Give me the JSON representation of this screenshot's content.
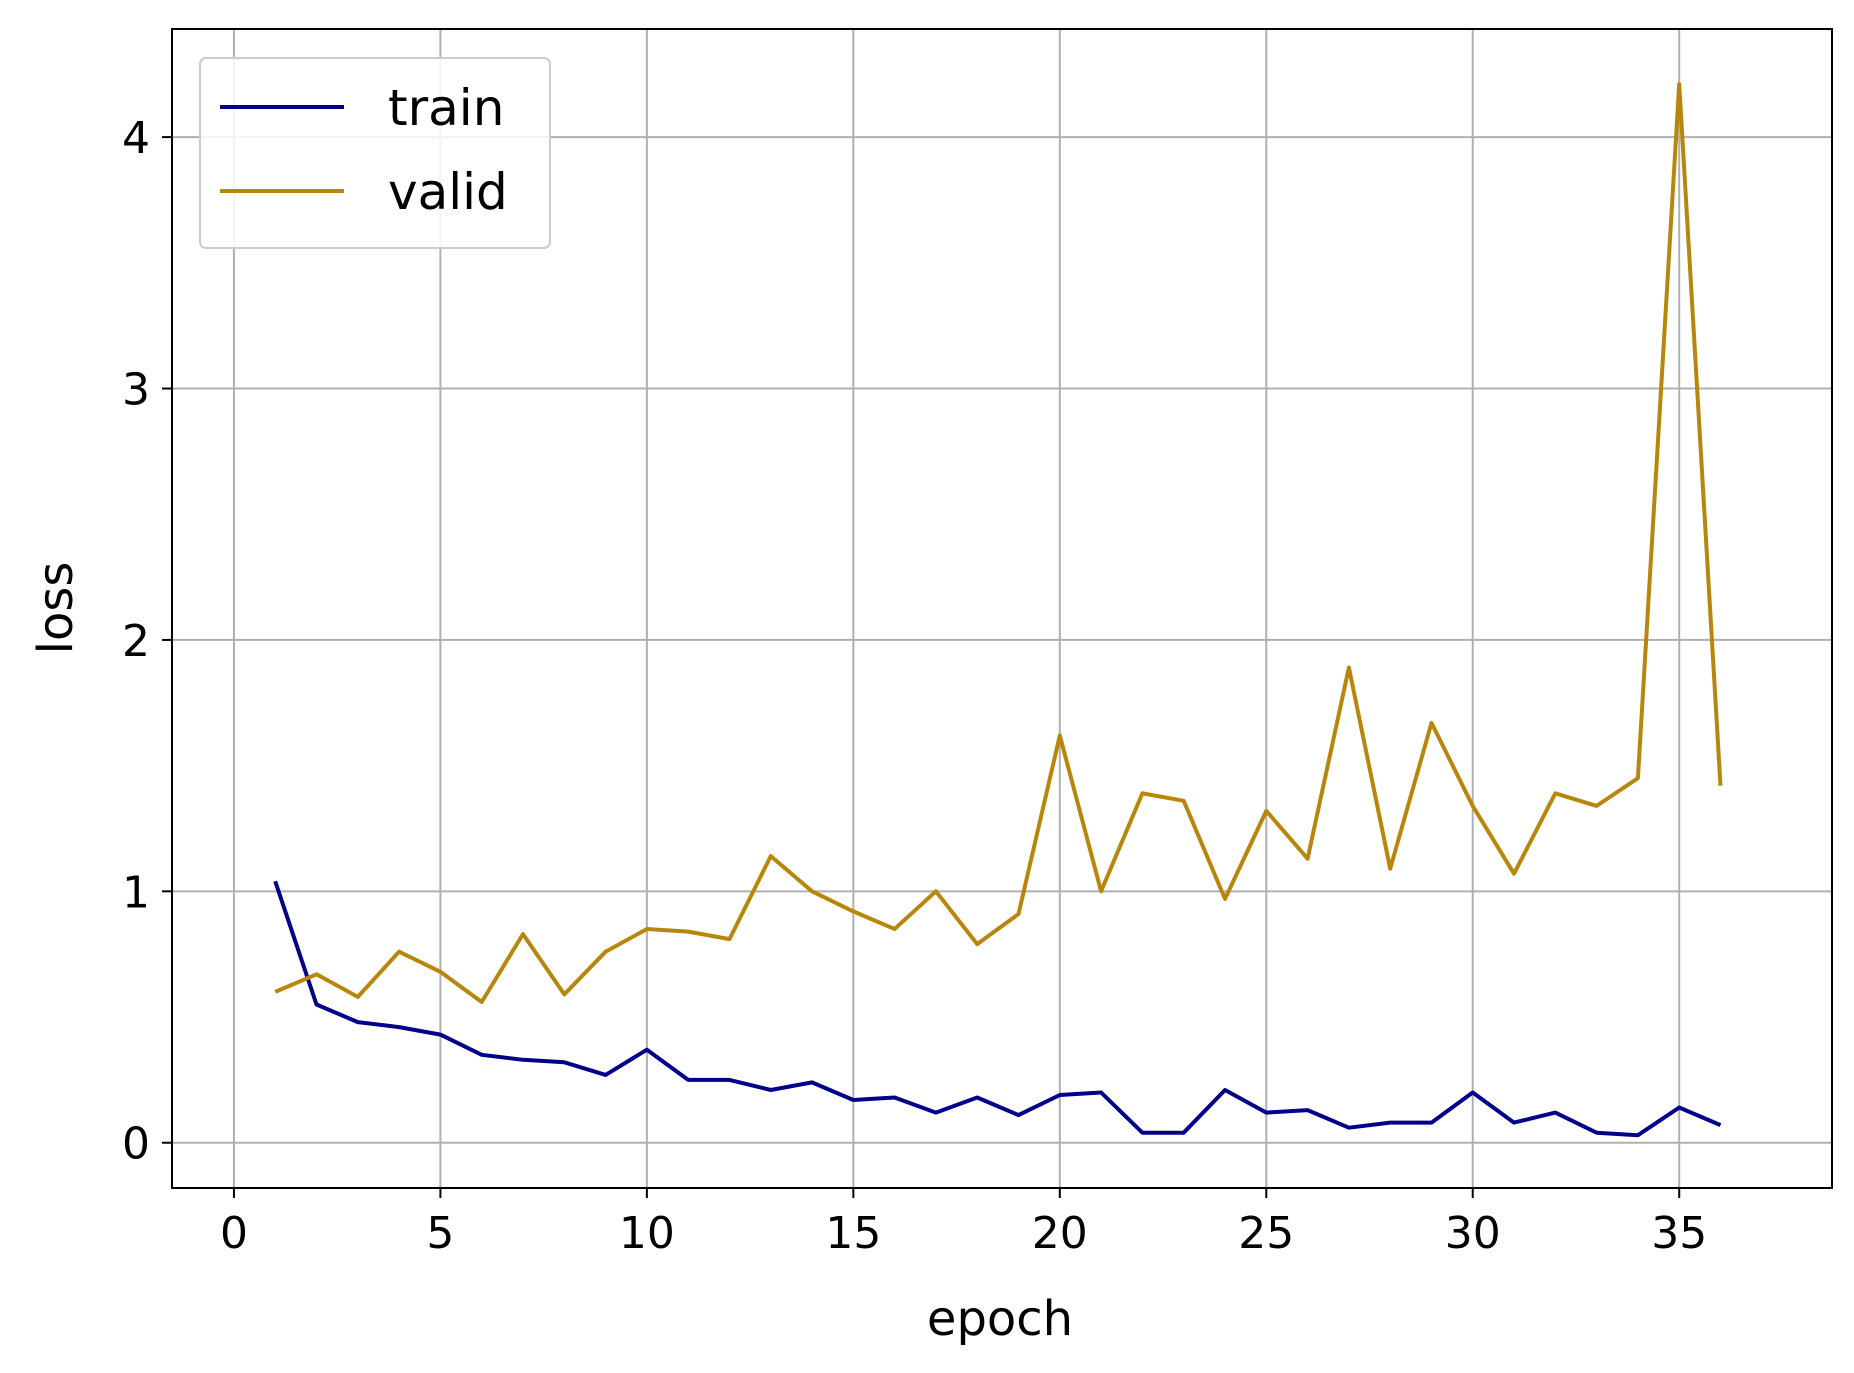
{
  "chart_data": {
    "type": "line",
    "title": "",
    "xlabel": "epoch",
    "ylabel": "loss",
    "xlim": [
      -1.5,
      38.7
    ],
    "ylim": [
      -0.18,
      4.43
    ],
    "xticks": [
      0,
      5,
      10,
      15,
      20,
      25,
      30,
      35
    ],
    "yticks": [
      0,
      1,
      2,
      3,
      4
    ],
    "xtick_labels": [
      "0",
      "5",
      "10",
      "15",
      "20",
      "25",
      "30",
      "35"
    ],
    "ytick_labels": [
      "0",
      "1",
      "2",
      "3",
      "4"
    ],
    "grid": true,
    "legend_position": "top-left",
    "x": [
      1,
      2,
      3,
      4,
      5,
      6,
      7,
      8,
      9,
      10,
      11,
      12,
      13,
      14,
      15,
      16,
      17,
      18,
      19,
      20,
      21,
      22,
      23,
      24,
      25,
      26,
      27,
      28,
      29,
      30,
      31,
      32,
      33,
      34,
      35,
      36
    ],
    "series": [
      {
        "name": "train",
        "color": "#00008b",
        "values": [
          1.04,
          0.55,
          0.48,
          0.46,
          0.43,
          0.35,
          0.33,
          0.32,
          0.27,
          0.37,
          0.25,
          0.25,
          0.21,
          0.24,
          0.17,
          0.18,
          0.12,
          0.18,
          0.11,
          0.19,
          0.2,
          0.04,
          0.04,
          0.21,
          0.12,
          0.13,
          0.06,
          0.08,
          0.08,
          0.2,
          0.08,
          0.12,
          0.04,
          0.03,
          0.14,
          0.07
        ]
      },
      {
        "name": "valid",
        "color": "#b8860b",
        "values": [
          0.6,
          0.67,
          0.58,
          0.76,
          0.68,
          0.56,
          0.83,
          0.59,
          0.76,
          0.85,
          0.84,
          0.81,
          1.14,
          1.0,
          0.92,
          0.85,
          1.0,
          0.79,
          0.91,
          1.62,
          1.0,
          1.39,
          1.36,
          0.97,
          1.32,
          1.13,
          1.89,
          1.09,
          1.67,
          1.34,
          1.07,
          1.39,
          1.34,
          1.45,
          4.21,
          1.42
        ]
      }
    ]
  }
}
